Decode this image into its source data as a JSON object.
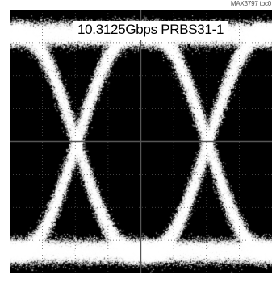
{
  "figure": {
    "id_label": "MAX3797 toc0",
    "background": "#000000",
    "trace_color": "#ffffff"
  },
  "chart_data": {
    "type": "scatter",
    "subtype": "eye-diagram",
    "title": "10.3125Gbps PRBS31-1",
    "xlabel": "",
    "ylabel": "",
    "grid": true,
    "grid_divisions": {
      "x": 8,
      "y": 8
    },
    "eye_crossings": [
      0.5,
      1.5
    ],
    "bit_period_span": 2,
    "xlim": [
      0,
      2
    ],
    "ylim": [
      -1,
      1
    ]
  }
}
